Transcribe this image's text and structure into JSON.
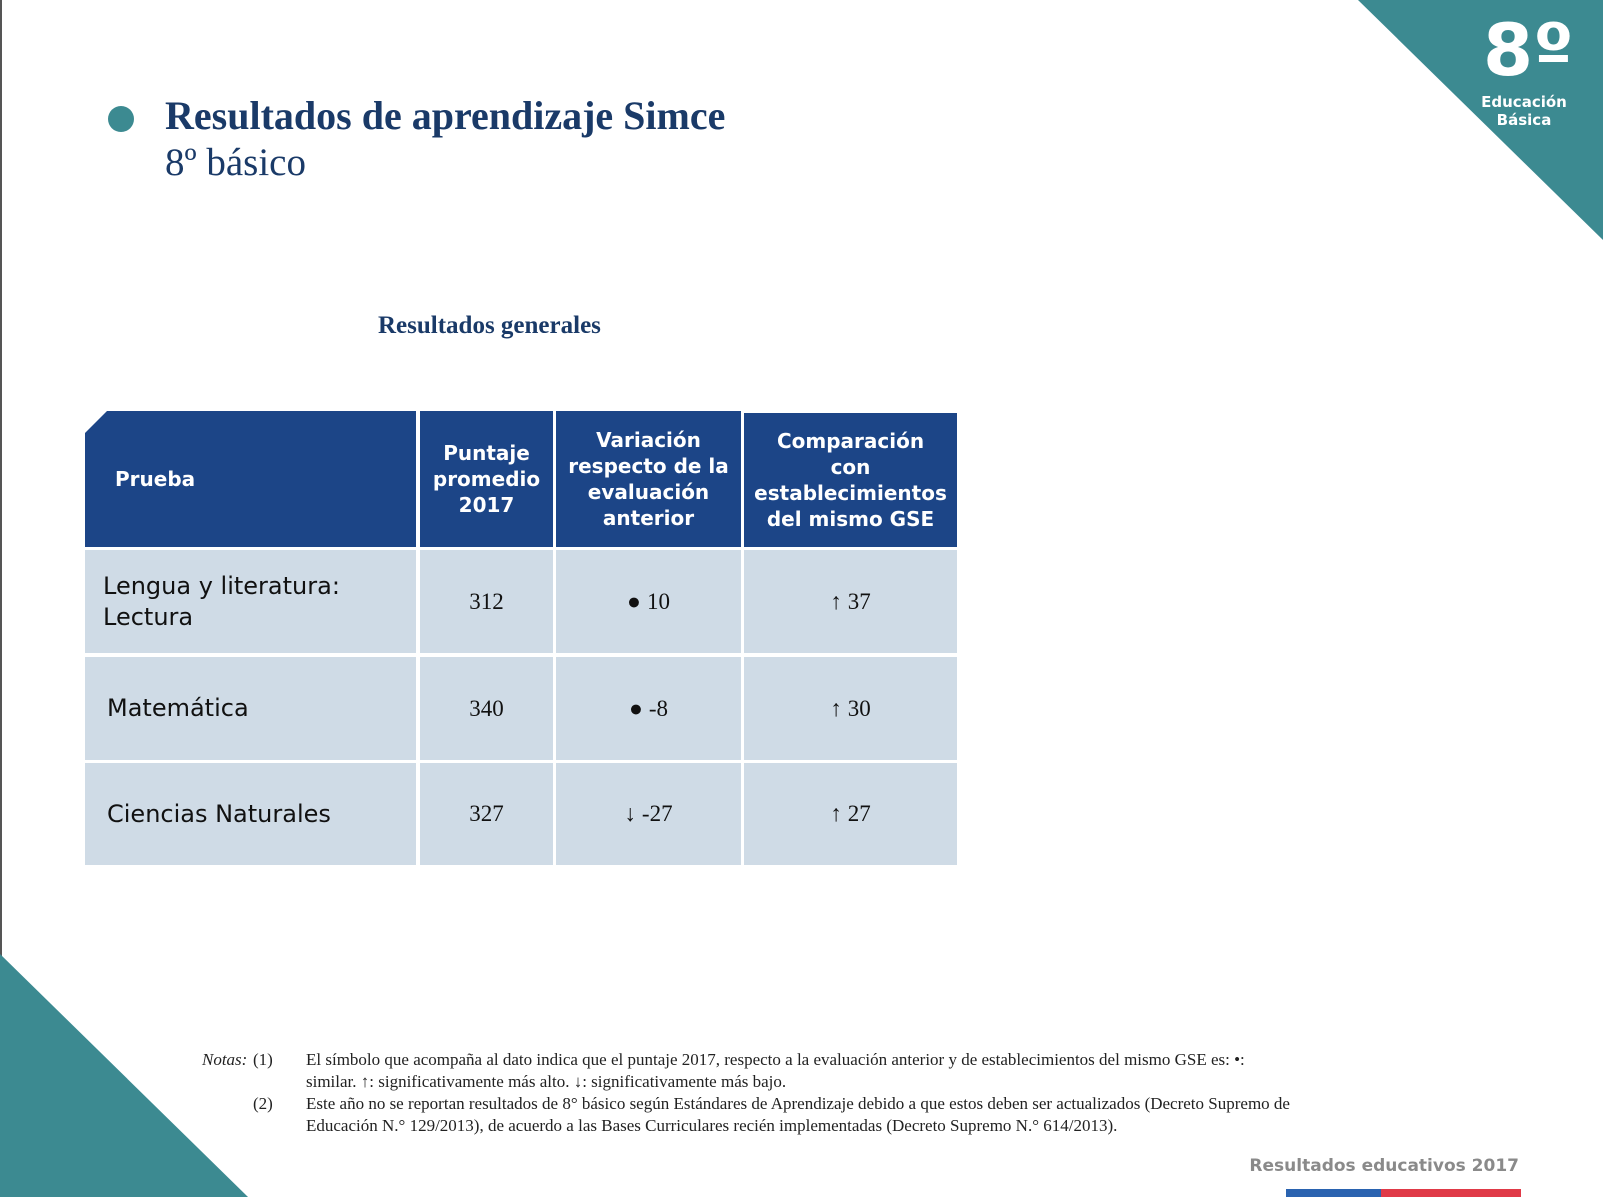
{
  "badge": {
    "number": "8º",
    "line1": "Educación",
    "line2": "Básica"
  },
  "header": {
    "title": "Resultados de aprendizaje Simce",
    "subtitle": "8º básico"
  },
  "section": {
    "title": "Resultados generales"
  },
  "table": {
    "headers": {
      "prueba": "Prueba",
      "puntaje": "Puntaje promedio 2017",
      "variacion": "Variación respecto de la evaluación anterior",
      "comparacion": "Comparación con establecimientos del mismo GSE"
    },
    "rows": [
      {
        "prueba": "Lengua y literatura: Lectura",
        "puntaje": "312",
        "variacion_symbol": "●",
        "variacion": "10",
        "comparacion_symbol": "↑",
        "comparacion": "37"
      },
      {
        "prueba": "Matemática",
        "puntaje": "340",
        "variacion_symbol": "●",
        "variacion": "-8",
        "comparacion_symbol": "↑",
        "comparacion": "30"
      },
      {
        "prueba": "Ciencias Naturales",
        "puntaje": "327",
        "variacion_symbol": "↓",
        "variacion": "-27",
        "comparacion_symbol": "↑",
        "comparacion": "27"
      }
    ]
  },
  "notes": {
    "label": "Notas:",
    "items": [
      {
        "num": "(1)",
        "text": "El símbolo que acompaña al dato indica que el puntaje 2017, respecto a la evaluación anterior y de establecimientos del mismo GSE es: •: similar.    ↑: significativamente más alto.   ↓: significativamente más bajo."
      },
      {
        "num": "(2)",
        "text": "Este año no se reportan resultados de 8° básico según Estándares de Aprendizaje debido a que estos deben ser actualizados (Decreto Supremo de Educación N.° 129/2013), de acuerdo a las Bases Curriculares recién implementadas (Decreto Supremo N.° 614/2013)."
      }
    ]
  },
  "footer": {
    "text": "Resultados educativos 2017"
  },
  "colors": {
    "teal": "#3c8a91",
    "navy": "#1c4587",
    "cell": "#cfdbe6",
    "flag_blue": "#2a63b0",
    "flag_red": "#e03a48"
  }
}
